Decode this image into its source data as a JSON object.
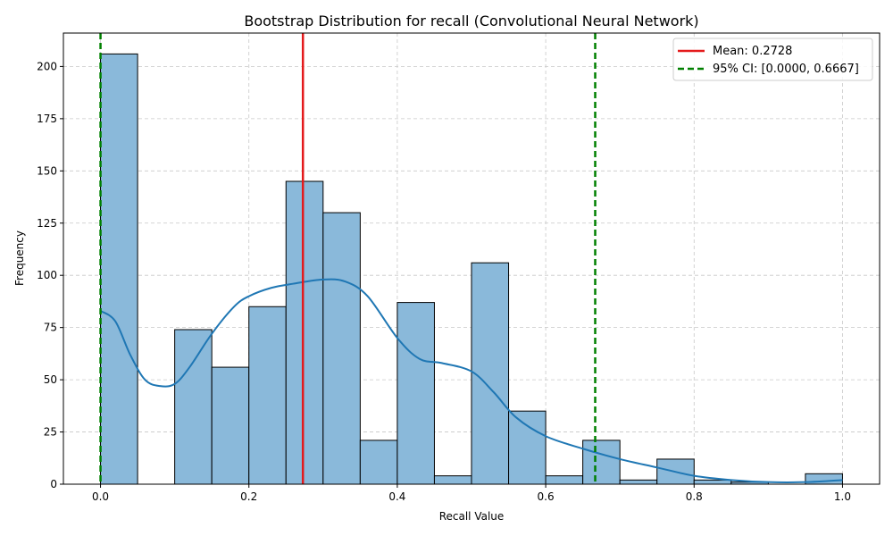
{
  "chart_data": {
    "type": "bar",
    "title": "Bootstrap Distribution for recall (Convolutional Neural Network)",
    "xlabel": "Recall Value",
    "ylabel": "Frequency",
    "xlim": [
      -0.05,
      1.05
    ],
    "ylim": [
      0,
      216
    ],
    "x_ticks": [
      0.0,
      0.2,
      0.4,
      0.6,
      0.8,
      1.0
    ],
    "x_tick_labels": [
      "0.0",
      "0.2",
      "0.4",
      "0.6",
      "0.8",
      "1.0"
    ],
    "y_ticks": [
      0,
      25,
      50,
      75,
      100,
      125,
      150,
      175,
      200
    ],
    "y_tick_labels": [
      "0",
      "25",
      "50",
      "75",
      "100",
      "125",
      "150",
      "175",
      "200"
    ],
    "grid": true,
    "bins": {
      "edges": [
        0.0,
        0.05,
        0.1,
        0.15,
        0.2,
        0.25,
        0.3,
        0.35,
        0.4,
        0.45,
        0.5,
        0.55,
        0.6,
        0.65,
        0.7,
        0.75,
        0.8,
        0.85,
        0.9,
        0.95,
        1.0
      ],
      "counts": [
        206,
        0,
        74,
        56,
        85,
        145,
        130,
        21,
        87,
        4,
        106,
        35,
        4,
        21,
        2,
        12,
        2,
        1,
        0,
        5
      ]
    },
    "kde": {
      "x": [
        0.0,
        0.02,
        0.04,
        0.06,
        0.08,
        0.1,
        0.12,
        0.15,
        0.18,
        0.2,
        0.23,
        0.26,
        0.3,
        0.33,
        0.36,
        0.4,
        0.43,
        0.46,
        0.5,
        0.53,
        0.56,
        0.6,
        0.65,
        0.7,
        0.75,
        0.8,
        0.85,
        0.9,
        0.95,
        1.0
      ],
      "y": [
        83,
        78,
        62,
        50,
        47,
        48,
        56,
        72,
        85,
        90,
        94,
        96,
        98,
        97,
        90,
        70,
        60,
        58,
        54,
        44,
        32,
        23,
        17,
        12,
        8,
        4,
        2,
        1,
        1,
        2
      ]
    },
    "lines": [
      {
        "label": "Mean: 0.2728",
        "x": 0.2728,
        "color": "#e41a1c",
        "style": "solid"
      },
      {
        "label": "95% CI: [0.0000, 0.6667]",
        "x": [
          0.0,
          0.6667
        ],
        "color": "#008000",
        "style": "dashed"
      }
    ],
    "legend_position": "top-right",
    "colors": {
      "bar_fill": "#8ab9da",
      "bar_edge": "#000000",
      "kde": "#1f77b4",
      "grid": "#c8c8c8"
    }
  }
}
